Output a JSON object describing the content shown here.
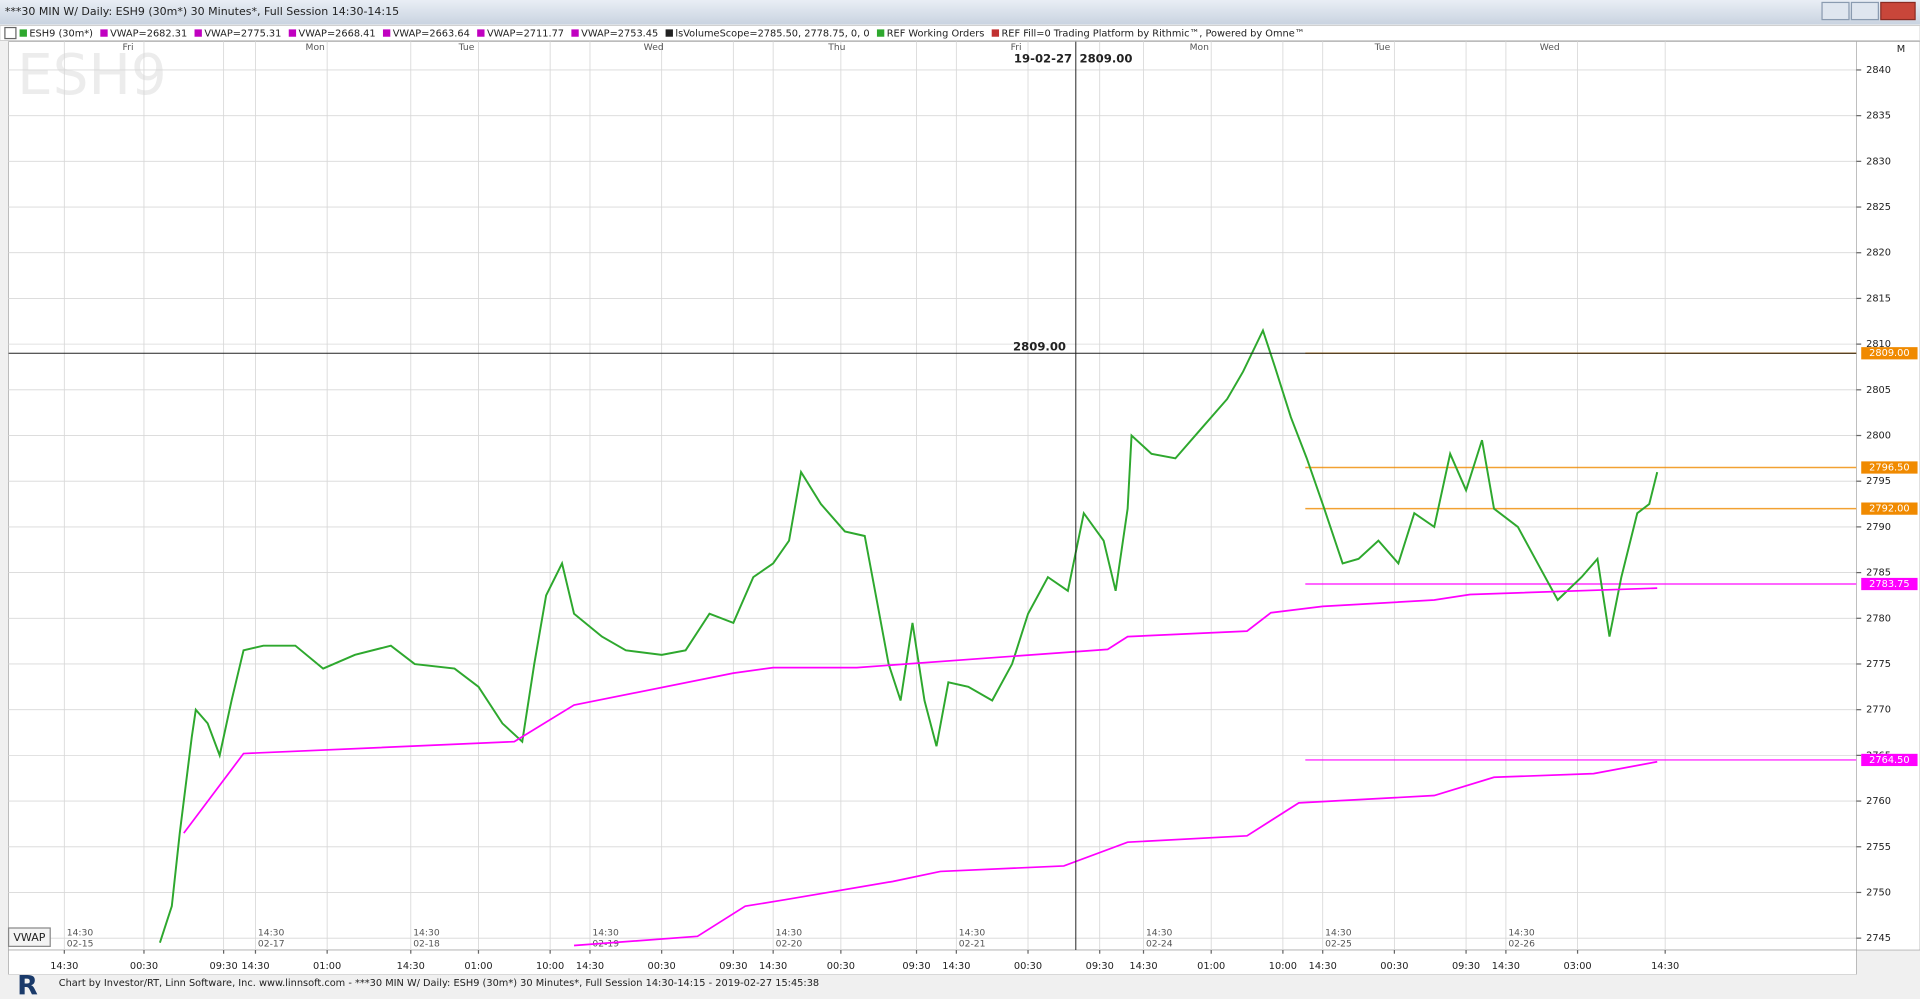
{
  "window_title": "***30 MIN W/ Daily: ESH9 (30m*) 30 Minutes*, Full Session 14:30-14:15",
  "legend": [
    {
      "label": "ESH9 (30m*)",
      "color": "#2ea82e"
    },
    {
      "label": "VWAP=2682.31",
      "color": "#c000c0"
    },
    {
      "label": "VWAP=2775.31",
      "color": "#c000c0"
    },
    {
      "label": "VWAP=2668.41",
      "color": "#c000c0"
    },
    {
      "label": "VWAP=2663.64",
      "color": "#c000c0"
    },
    {
      "label": "VWAP=2711.77",
      "color": "#c000c0"
    },
    {
      "label": "VWAP=2753.45",
      "color": "#c000c0"
    },
    {
      "label": "lsVolumeScope=2785.50, 2778.75, 0, 0",
      "color": "#222222"
    },
    {
      "label": "REF Working Orders",
      "color": "#2ea82e"
    },
    {
      "label": "REF Fill=0  Trading Platform by Rithmic™, Powered by Omne™",
      "color": "#c03030"
    }
  ],
  "watermark": "ESH9",
  "corner_label": "M",
  "button": "VWAP",
  "footer": "Chart by Investor/RT, Linn Software, Inc. www.linnsoft.com - ***30 MIN W/ Daily: ESH9 (30m*) 30 Minutes*, Full Session 14:30-14:15 - 2019-02-27 15:45:38",
  "chart_data": {
    "type": "line",
    "xlim": [
      0,
      464
    ],
    "ylim": [
      2743.7,
      2843.1
    ],
    "yticks": [
      2745,
      2750,
      2755,
      2760,
      2765,
      2770,
      2775,
      2780,
      2785,
      2790,
      2795,
      2800,
      2805,
      2810,
      2815,
      2820,
      2825,
      2830,
      2835,
      2840
    ],
    "xticks": [
      {
        "value": 14,
        "label": "14:30"
      },
      {
        "value": 34,
        "label": "00:30"
      },
      {
        "value": 54,
        "label": "09:30"
      },
      {
        "value": 62,
        "label": "14:30"
      },
      {
        "value": 80,
        "label": "01:00"
      },
      {
        "value": 101,
        "label": "14:30"
      },
      {
        "value": 118,
        "label": "01:00"
      },
      {
        "value": 136,
        "label": "10:00"
      },
      {
        "value": 146,
        "label": "14:30"
      },
      {
        "value": 164,
        "label": "00:30"
      },
      {
        "value": 182,
        "label": "09:30"
      },
      {
        "value": 192,
        "label": "14:30"
      },
      {
        "value": 209,
        "label": "00:30"
      },
      {
        "value": 228,
        "label": "09:30"
      },
      {
        "value": 238,
        "label": "14:30"
      },
      {
        "value": 256,
        "label": "00:30"
      },
      {
        "value": 274,
        "label": "09:30"
      },
      {
        "value": 285,
        "label": "14:30"
      },
      {
        "value": 302,
        "label": "01:00"
      },
      {
        "value": 320,
        "label": "10:00"
      },
      {
        "value": 330,
        "label": "14:30"
      },
      {
        "value": 348,
        "label": "00:30"
      },
      {
        "value": 366,
        "label": "09:30"
      },
      {
        "value": 376,
        "label": "14:30"
      },
      {
        "value": 394,
        "label": "03:00"
      },
      {
        "value": 416,
        "label": "14:30"
      }
    ],
    "xdates": [
      {
        "value": 14,
        "label": "02-15"
      },
      {
        "value": 62,
        "label": "02-17"
      },
      {
        "value": 101,
        "label": "02-18"
      },
      {
        "value": 146,
        "label": "02-19"
      },
      {
        "value": 192,
        "label": "02-20"
      },
      {
        "value": 238,
        "label": "02-21"
      },
      {
        "value": 285,
        "label": "02-24"
      },
      {
        "value": 330,
        "label": "02-25"
      },
      {
        "value": 376,
        "label": "02-26"
      }
    ],
    "day_labels": [
      {
        "value": 30,
        "label": "Fri"
      },
      {
        "value": 77,
        "label": "Mon"
      },
      {
        "value": 115,
        "label": "Tue"
      },
      {
        "value": 162,
        "label": "Wed"
      },
      {
        "value": 208,
        "label": "Thu"
      },
      {
        "value": 253,
        "label": "Fri"
      },
      {
        "value": 299,
        "label": "Mon"
      },
      {
        "value": 345,
        "label": "Tue"
      },
      {
        "value": 387,
        "label": "Wed"
      }
    ],
    "grid": true,
    "crosshair": {
      "x": 268,
      "date": "19-02-27",
      "price": {
        "value": 2809,
        "label": "2809.00"
      }
    },
    "price_markers": [
      {
        "value": 2809,
        "label": "2809.00",
        "color": "#f08a00"
      },
      {
        "value": 2796.5,
        "label": "2796.50",
        "color": "#f08a00"
      },
      {
        "value": 2792,
        "label": "2792.00",
        "color": "#f08a00"
      },
      {
        "value": 2783.75,
        "label": "2783.75",
        "color": "#ff00ff"
      },
      {
        "value": 2764.5,
        "label": "2764.50",
        "color": "#ff00ff"
      }
    ],
    "series": [
      {
        "color": "#2ea82e",
        "x": [
          38,
          41,
          43,
          46,
          47,
          50,
          53,
          56,
          59,
          64,
          72,
          79,
          87,
          96,
          102,
          112,
          118,
          124,
          129,
          132,
          135,
          139,
          142,
          149,
          155,
          164,
          170,
          176,
          182,
          187,
          192,
          196,
          199,
          204,
          210,
          215,
          218,
          221,
          224,
          227,
          230,
          233,
          236,
          241,
          247,
          252,
          256,
          261,
          266,
          270,
          275,
          278,
          281,
          282,
          287,
          293,
          299,
          306,
          310,
          315,
          318,
          322,
          326,
          330,
          335,
          339,
          344,
          349,
          353,
          358,
          362,
          366,
          370,
          373,
          379,
          384,
          389,
          395,
          399,
          402,
          405,
          409,
          412,
          414
        ],
        "values": [
          2744.5,
          2748.5,
          2756.5,
          2767,
          2770,
          2768.5,
          2765,
          2771,
          2776.5,
          2777,
          2777,
          2774.5,
          2776,
          2777,
          2775,
          2774.5,
          2772.5,
          2768.5,
          2766.5,
          2775,
          2782.5,
          2786,
          2780.5,
          2778,
          2776.5,
          2776,
          2776.5,
          2780.5,
          2779.5,
          2784.5,
          2786,
          2788.5,
          2796,
          2792.5,
          2789.5,
          2789,
          2782,
          2775,
          2771,
          2779.5,
          2771,
          2766,
          2773,
          2772.5,
          2771,
          2775,
          2780.5,
          2784.5,
          2783,
          2791.5,
          2788.5,
          2783,
          2792,
          2800,
          2798,
          2797.5,
          2800.5,
          2804,
          2807,
          2811.5,
          2807.5,
          2802,
          2797.5,
          2792.5,
          2786,
          2786.5,
          2788.5,
          2786,
          2791.5,
          2790,
          2798,
          2794,
          2799.5,
          2792,
          2790,
          2786,
          2782,
          2784.5,
          2786.5,
          2778,
          2784.5,
          2791.5,
          2792.5,
          2796
        ]
      },
      {
        "color": "#ff00ff",
        "x": [
          44,
          59,
          127,
          142,
          182,
          192,
          213,
          276,
          281,
          311,
          317,
          330,
          358,
          367,
          414
        ],
        "values": [
          2756.5,
          2765.2,
          2766.5,
          2770.5,
          2774,
          2774.6,
          2774.6,
          2776.6,
          2778,
          2778.6,
          2780.6,
          2781.3,
          2782,
          2782.6,
          2783.3
        ]
      },
      {
        "color": "#ff00ff",
        "x": [
          142,
          173,
          185,
          195,
          222,
          234,
          265,
          281,
          311,
          324,
          358,
          373,
          398,
          414
        ],
        "values": [
          2744.2,
          2745.2,
          2748.5,
          2749.2,
          2751.2,
          2752.3,
          2752.9,
          2755.5,
          2756.2,
          2759.8,
          2760.6,
          2762.6,
          2763,
          2764.3
        ]
      }
    ]
  }
}
